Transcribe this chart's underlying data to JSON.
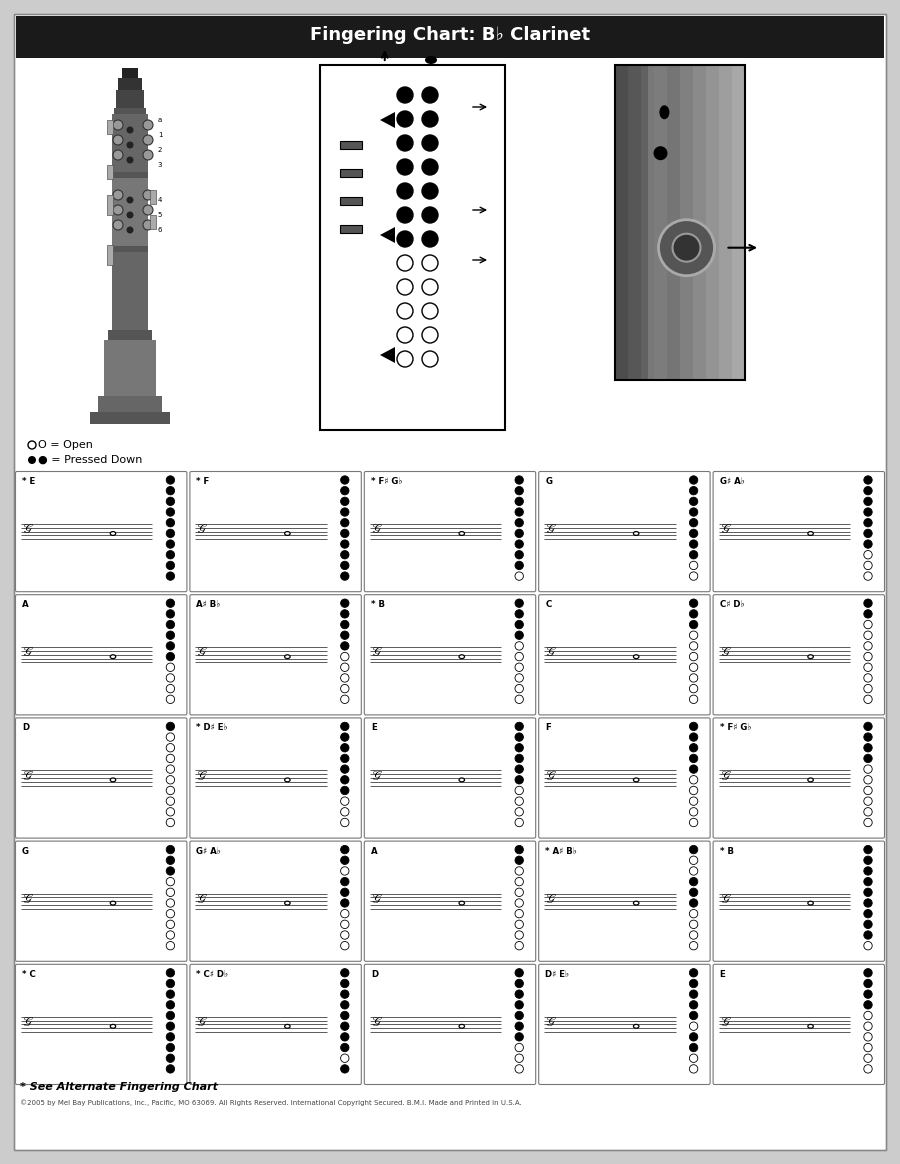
{
  "title": "Fingering Chart: B♭ Clarinet",
  "title_bg": "#1a1a1a",
  "title_color": "#ffffff",
  "page_bg": "#cccccc",
  "card_bg": "#ffffff",
  "footer_note": "* See Alternate Fingering Chart",
  "footer_copy": "©2005 by Mel Bay Publications, Inc., Pacific, MO 63069. All Rights Reserved. International Copyright Secured. B.M.I. Made and Printed in U.S.A.",
  "legend_open": "O = Open",
  "legend_closed": "● = Pressed Down",
  "grid_rows": 5,
  "grid_cols": 5,
  "cells": [
    {
      "row": 0,
      "col": 0,
      "note": "* E",
      "holes": [
        1,
        1,
        1,
        1,
        1,
        1,
        1,
        1,
        1,
        1
      ]
    },
    {
      "row": 0,
      "col": 1,
      "note": "* F",
      "holes": [
        1,
        1,
        1,
        1,
        1,
        1,
        1,
        1,
        1,
        1
      ]
    },
    {
      "row": 0,
      "col": 2,
      "note": "* F♯ G♭",
      "holes": [
        1,
        1,
        1,
        1,
        1,
        1,
        1,
        1,
        1,
        0
      ]
    },
    {
      "row": 0,
      "col": 3,
      "note": "G",
      "holes": [
        1,
        1,
        1,
        1,
        1,
        1,
        1,
        1,
        0,
        0
      ]
    },
    {
      "row": 0,
      "col": 4,
      "note": "G♯ A♭",
      "holes": [
        1,
        1,
        1,
        1,
        1,
        1,
        1,
        0,
        0,
        0
      ]
    },
    {
      "row": 1,
      "col": 0,
      "note": "A",
      "holes": [
        1,
        1,
        1,
        1,
        1,
        1,
        0,
        0,
        0,
        0
      ]
    },
    {
      "row": 1,
      "col": 1,
      "note": "A♯ B♭",
      "holes": [
        1,
        1,
        1,
        1,
        1,
        0,
        0,
        0,
        0,
        0
      ]
    },
    {
      "row": 1,
      "col": 2,
      "note": "* B",
      "holes": [
        1,
        1,
        1,
        1,
        0,
        0,
        0,
        0,
        0,
        0
      ]
    },
    {
      "row": 1,
      "col": 3,
      "note": "C",
      "holes": [
        1,
        1,
        1,
        0,
        0,
        0,
        0,
        0,
        0,
        0
      ]
    },
    {
      "row": 1,
      "col": 4,
      "note": "C♯ D♭",
      "holes": [
        1,
        1,
        0,
        0,
        0,
        0,
        0,
        0,
        0,
        0
      ]
    },
    {
      "row": 2,
      "col": 0,
      "note": "D",
      "holes": [
        1,
        0,
        0,
        0,
        0,
        0,
        0,
        0,
        0,
        0
      ]
    },
    {
      "row": 2,
      "col": 1,
      "note": "* D♯ E♭",
      "holes": [
        1,
        1,
        1,
        1,
        1,
        1,
        1,
        0,
        0,
        0
      ]
    },
    {
      "row": 2,
      "col": 2,
      "note": "E",
      "holes": [
        1,
        1,
        1,
        1,
        1,
        1,
        0,
        0,
        0,
        0
      ]
    },
    {
      "row": 2,
      "col": 3,
      "note": "F",
      "holes": [
        1,
        1,
        1,
        1,
        1,
        0,
        0,
        0,
        0,
        0
      ]
    },
    {
      "row": 2,
      "col": 4,
      "note": "* F♯ G♭",
      "holes": [
        1,
        1,
        1,
        1,
        0,
        0,
        0,
        0,
        0,
        0
      ]
    },
    {
      "row": 3,
      "col": 0,
      "note": "G",
      "holes": [
        1,
        1,
        1,
        0,
        0,
        0,
        0,
        0,
        0,
        0
      ]
    },
    {
      "row": 3,
      "col": 1,
      "note": "G♯ A♭",
      "holes": [
        1,
        1,
        0,
        1,
        1,
        1,
        0,
        0,
        0,
        0
      ]
    },
    {
      "row": 3,
      "col": 2,
      "note": "A",
      "holes": [
        1,
        1,
        0,
        0,
        0,
        0,
        0,
        0,
        0,
        0
      ]
    },
    {
      "row": 3,
      "col": 3,
      "note": "* A♯ B♭",
      "holes": [
        1,
        0,
        0,
        1,
        1,
        1,
        0,
        0,
        0,
        0
      ]
    },
    {
      "row": 3,
      "col": 4,
      "note": "* B",
      "holes": [
        1,
        1,
        1,
        1,
        1,
        1,
        1,
        1,
        1,
        0
      ]
    },
    {
      "row": 4,
      "col": 0,
      "note": "* C",
      "holes": [
        1,
        1,
        1,
        1,
        1,
        1,
        1,
        1,
        1,
        1
      ]
    },
    {
      "row": 4,
      "col": 1,
      "note": "* C♯ D♭",
      "holes": [
        1,
        1,
        1,
        1,
        1,
        1,
        1,
        1,
        0,
        1
      ]
    },
    {
      "row": 4,
      "col": 2,
      "note": "D",
      "holes": [
        1,
        1,
        1,
        1,
        1,
        1,
        1,
        0,
        0,
        0
      ]
    },
    {
      "row": 4,
      "col": 3,
      "note": "D♯ E♭",
      "holes": [
        1,
        1,
        1,
        1,
        1,
        0,
        1,
        1,
        0,
        0
      ]
    },
    {
      "row": 4,
      "col": 4,
      "note": "E",
      "holes": [
        1,
        1,
        1,
        1,
        0,
        0,
        0,
        0,
        0,
        0
      ]
    }
  ]
}
